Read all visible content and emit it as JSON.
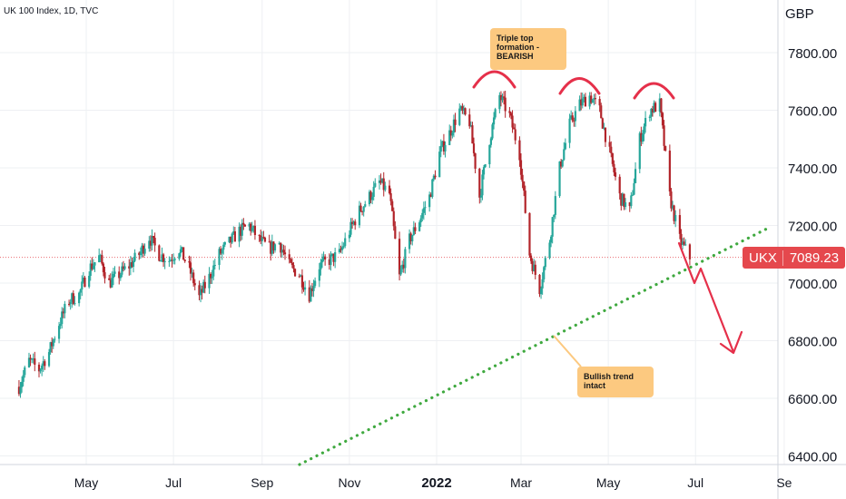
{
  "header": {
    "title": "UK 100 Index, 1D, TVC",
    "currency": "GBP"
  },
  "price_badge": {
    "symbol": "UKX",
    "value": "7089.23"
  },
  "annotations": {
    "triple_top": "Triple top formation - BEARISH",
    "bullish_trend": "Bullish trend intact"
  },
  "colors": {
    "up": "#26a69a",
    "down": "#b2242a",
    "arcs": "#e5304a",
    "trendline": "#3fa93f",
    "forecast": "#e5304a",
    "badge": "#e5484d",
    "note_bg": "#fcc980"
  },
  "chart_data": {
    "type": "candlestick",
    "title": "UK 100 Index, 1D, TVC",
    "ylabel": "GBP",
    "ylim": [
      6380,
      7890
    ],
    "y_ticks": [
      "6400.00",
      "6600.00",
      "6800.00",
      "7000.00",
      "7200.00",
      "7400.00",
      "7600.00",
      "7800.00"
    ],
    "x_ticks": [
      "May",
      "Jul",
      "Sep",
      "Nov",
      "2022",
      "Mar",
      "May",
      "Jul",
      "Se"
    ],
    "last_price": 7089.23,
    "closes": [
      {
        "date": "2021-03-15",
        "close": 6640
      },
      {
        "date": "2021-03-22",
        "close": 6730
      },
      {
        "date": "2021-03-29",
        "close": 6700
      },
      {
        "date": "2021-04-05",
        "close": 6760
      },
      {
        "date": "2021-04-12",
        "close": 6860
      },
      {
        "date": "2021-04-19",
        "close": 6940
      },
      {
        "date": "2021-04-26",
        "close": 6960
      },
      {
        "date": "2021-05-03",
        "close": 7050
      },
      {
        "date": "2021-05-10",
        "close": 7090
      },
      {
        "date": "2021-05-17",
        "close": 7000
      },
      {
        "date": "2021-05-24",
        "close": 7030
      },
      {
        "date": "2021-05-31",
        "close": 7060
      },
      {
        "date": "2021-06-07",
        "close": 7100
      },
      {
        "date": "2021-06-14",
        "close": 7160
      },
      {
        "date": "2021-06-21",
        "close": 7100
      },
      {
        "date": "2021-06-28",
        "close": 7080
      },
      {
        "date": "2021-07-05",
        "close": 7120
      },
      {
        "date": "2021-07-12",
        "close": 7050
      },
      {
        "date": "2021-07-19",
        "close": 6950
      },
      {
        "date": "2021-07-26",
        "close": 7020
      },
      {
        "date": "2021-08-02",
        "close": 7100
      },
      {
        "date": "2021-08-09",
        "close": 7140
      },
      {
        "date": "2021-08-16",
        "close": 7180
      },
      {
        "date": "2021-08-23",
        "close": 7200
      },
      {
        "date": "2021-08-30",
        "close": 7150
      },
      {
        "date": "2021-09-06",
        "close": 7120
      },
      {
        "date": "2021-09-13",
        "close": 7140
      },
      {
        "date": "2021-09-20",
        "close": 7060
      },
      {
        "date": "2021-09-27",
        "close": 7030
      },
      {
        "date": "2021-10-04",
        "close": 6960
      },
      {
        "date": "2021-10-11",
        "close": 7060
      },
      {
        "date": "2021-10-18",
        "close": 7080
      },
      {
        "date": "2021-10-25",
        "close": 7100
      },
      {
        "date": "2021-11-01",
        "close": 7180
      },
      {
        "date": "2021-11-08",
        "close": 7250
      },
      {
        "date": "2021-11-15",
        "close": 7300
      },
      {
        "date": "2021-11-22",
        "close": 7350
      },
      {
        "date": "2021-11-29",
        "close": 7310
      },
      {
        "date": "2021-12-06",
        "close": 7020
      },
      {
        "date": "2021-12-13",
        "close": 7150
      },
      {
        "date": "2021-12-20",
        "close": 7220
      },
      {
        "date": "2021-12-27",
        "close": 7300
      },
      {
        "date": "2022-01-03",
        "close": 7450
      },
      {
        "date": "2022-01-10",
        "close": 7520
      },
      {
        "date": "2022-01-17",
        "close": 7600
      },
      {
        "date": "2022-01-24",
        "close": 7560
      },
      {
        "date": "2022-01-31",
        "close": 7300
      },
      {
        "date": "2022-02-07",
        "close": 7500
      },
      {
        "date": "2022-02-14",
        "close": 7650
      },
      {
        "date": "2022-02-21",
        "close": 7580
      },
      {
        "date": "2022-02-28",
        "close": 7450
      },
      {
        "date": "2022-03-07",
        "close": 7100
      },
      {
        "date": "2022-03-14",
        "close": 6980
      },
      {
        "date": "2022-03-21",
        "close": 7150
      },
      {
        "date": "2022-03-28",
        "close": 7400
      },
      {
        "date": "2022-04-04",
        "close": 7550
      },
      {
        "date": "2022-04-11",
        "close": 7620
      },
      {
        "date": "2022-04-18",
        "close": 7650
      },
      {
        "date": "2022-04-25",
        "close": 7600
      },
      {
        "date": "2022-05-02",
        "close": 7450
      },
      {
        "date": "2022-05-09",
        "close": 7300
      },
      {
        "date": "2022-05-16",
        "close": 7250
      },
      {
        "date": "2022-05-23",
        "close": 7500
      },
      {
        "date": "2022-05-30",
        "close": 7600
      },
      {
        "date": "2022-06-06",
        "close": 7620
      },
      {
        "date": "2022-06-13",
        "close": 7300
      },
      {
        "date": "2022-06-20",
        "close": 7150
      },
      {
        "date": "2022-06-27",
        "close": 7089
      }
    ]
  }
}
